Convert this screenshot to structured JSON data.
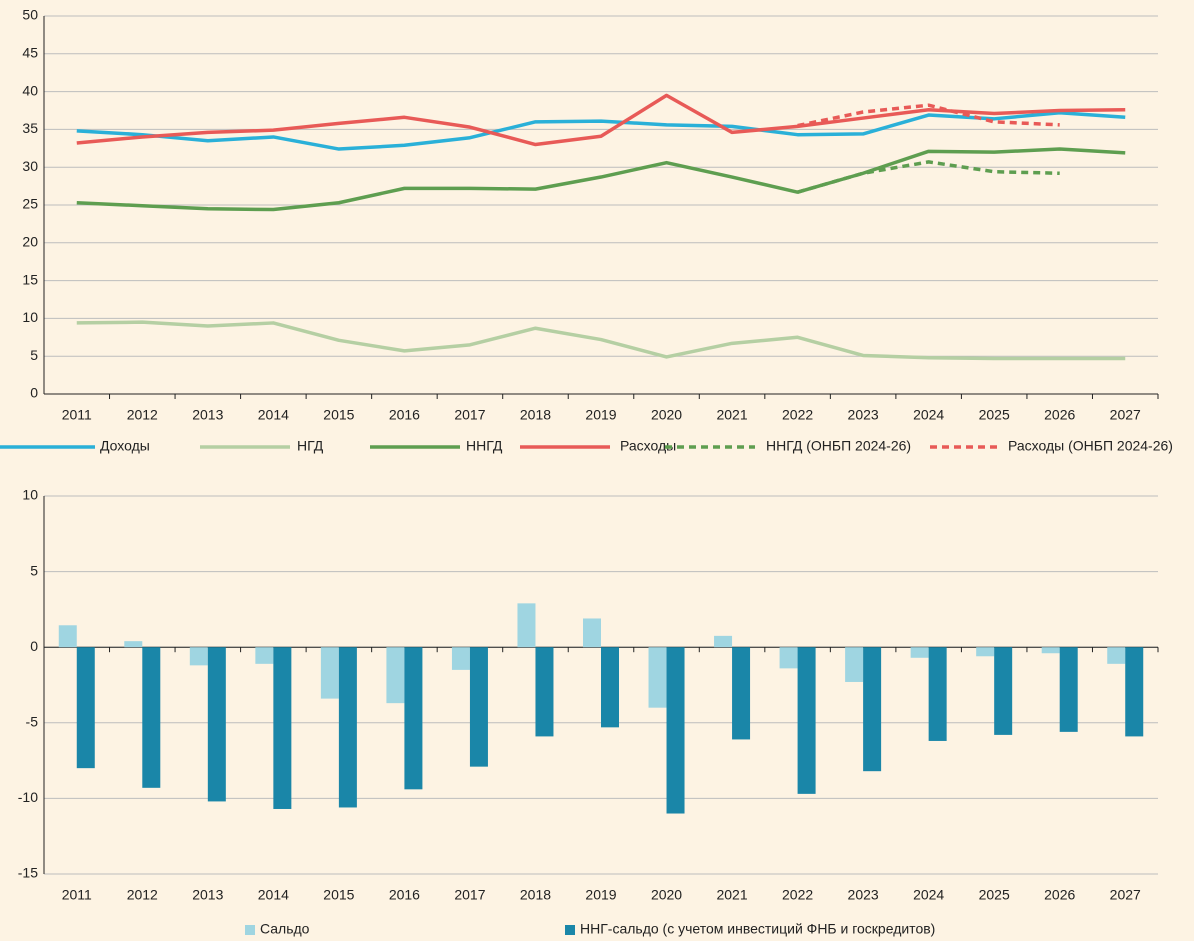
{
  "chart_data": [
    {
      "type": "line",
      "categories": [
        "2011",
        "2012",
        "2013",
        "2014",
        "2015",
        "2016",
        "2017",
        "2018",
        "2019",
        "2020",
        "2021",
        "2022",
        "2023",
        "2024",
        "2025",
        "2026",
        "2027"
      ],
      "ylim": [
        0,
        50
      ],
      "yticks": [
        0,
        5,
        10,
        15,
        20,
        25,
        30,
        35,
        40,
        45,
        50
      ],
      "grid": true,
      "series": [
        {
          "name": "Доходы",
          "color": "#2ab0d8",
          "values": [
            34.8,
            34.3,
            33.5,
            34.0,
            32.4,
            32.9,
            33.9,
            36.0,
            36.1,
            35.6,
            35.4,
            34.3,
            34.4,
            36.9,
            36.4,
            37.2,
            36.6
          ]
        },
        {
          "name": "НГД",
          "color": "#b5cfa3",
          "values": [
            9.4,
            9.5,
            9.0,
            9.4,
            7.1,
            5.7,
            6.5,
            8.7,
            7.2,
            4.9,
            6.7,
            7.5,
            5.1,
            4.8,
            4.7,
            4.7,
            4.7
          ]
        },
        {
          "name": "ННГД",
          "color": "#5e9e50",
          "values": [
            25.3,
            24.9,
            24.5,
            24.4,
            25.3,
            27.2,
            27.2,
            27.1,
            28.7,
            30.6,
            28.7,
            26.7,
            29.2,
            32.1,
            32.0,
            32.4,
            31.9
          ]
        },
        {
          "name": "Расходы",
          "color": "#e85a57",
          "values": [
            33.2,
            34.0,
            34.6,
            34.9,
            35.8,
            36.6,
            35.3,
            33.0,
            34.1,
            39.5,
            34.6,
            35.4,
            36.5,
            37.6,
            37.1,
            37.5,
            37.6
          ]
        },
        {
          "name": "ННГД (ОНБП 2024-26)",
          "color": "#5e9e50",
          "dashed": true,
          "values": [
            null,
            null,
            null,
            null,
            null,
            null,
            null,
            null,
            null,
            null,
            null,
            26.7,
            29.2,
            30.7,
            29.4,
            29.2,
            null
          ]
        },
        {
          "name": "Расходы (ОНБП 2024-26)",
          "color": "#e85a57",
          "dashed": true,
          "values": [
            null,
            null,
            null,
            null,
            null,
            null,
            null,
            null,
            null,
            null,
            null,
            35.5,
            37.3,
            38.2,
            36.0,
            35.6,
            null
          ]
        }
      ]
    },
    {
      "type": "bar",
      "categories": [
        "2011",
        "2012",
        "2013",
        "2014",
        "2015",
        "2016",
        "2017",
        "2018",
        "2019",
        "2020",
        "2021",
        "2022",
        "2023",
        "2024",
        "2025",
        "2026",
        "2027"
      ],
      "ylim": [
        -15,
        10
      ],
      "yticks": [
        -15,
        -10,
        -5,
        0,
        5,
        10
      ],
      "grid": true,
      "series": [
        {
          "name": "Сальдо",
          "color": "#9fd5e1",
          "values": [
            1.45,
            0.4,
            -1.2,
            -1.1,
            -3.4,
            -3.7,
            -1.5,
            2.9,
            1.9,
            -4.0,
            0.75,
            -1.4,
            -2.3,
            -0.7,
            -0.6,
            -0.4,
            -1.1
          ]
        },
        {
          "name": "ННГ-сальдо (с учетом инвестиций ФНБ и госкредитов)",
          "color": "#1a86a8",
          "values": [
            -8.0,
            -9.3,
            -10.2,
            -10.7,
            -10.6,
            -9.4,
            -7.9,
            -5.9,
            -5.3,
            -11.0,
            -6.1,
            -9.7,
            -8.2,
            -6.2,
            -5.8,
            -5.6,
            -5.9
          ]
        }
      ]
    }
  ]
}
